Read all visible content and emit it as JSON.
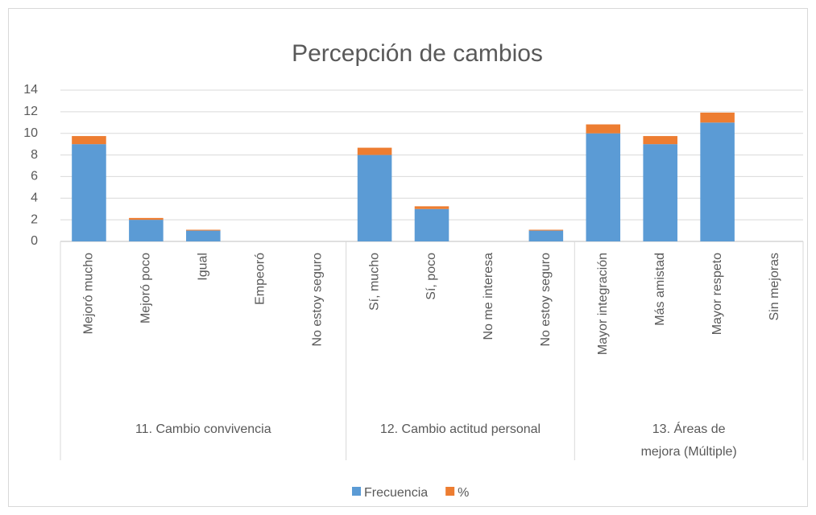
{
  "chart_data": {
    "type": "bar",
    "stacked": true,
    "title": "Percepción de cambios",
    "groups": [
      {
        "name": "11. Cambio convivencia",
        "categories": [
          "Mejoró mucho",
          "Mejoró poco",
          "Igual",
          "Empeoró",
          "No estoy seguro"
        ]
      },
      {
        "name": "12. Cambio actitud personal",
        "categories": [
          "Sí, mucho",
          "Sí, poco",
          "No me interesa",
          "No estoy seguro"
        ]
      },
      {
        "name": "13. Áreas de mejora (Múltiple)",
        "categories": [
          "Mayor integración",
          "Más amistad",
          "Mayor respeto",
          "Sin mejoras"
        ]
      }
    ],
    "series": [
      {
        "name": "Frecuencia",
        "color": "#5b9bd5",
        "values": [
          9,
          2,
          1,
          0,
          0,
          8,
          3,
          0,
          1,
          10,
          9,
          11,
          0
        ]
      },
      {
        "name": "%",
        "color": "#ed7d31",
        "values": [
          0.75,
          0.17,
          0.08,
          0,
          0,
          0.67,
          0.25,
          0,
          0.08,
          0.83,
          0.75,
          0.92,
          0
        ]
      }
    ],
    "ylim": [
      0,
      14
    ],
    "yticks": [
      0,
      2,
      4,
      6,
      8,
      10,
      12,
      14
    ],
    "grid": true,
    "legend": "bottom"
  }
}
